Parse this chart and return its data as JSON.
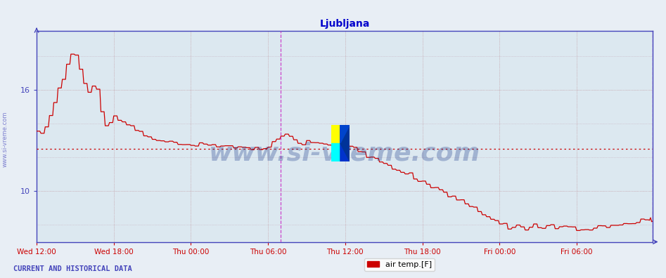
{
  "title": "Ljubljana",
  "title_color": "#0000cc",
  "background_color": "#e8eef5",
  "plot_bg_color": "#dce8f0",
  "grid_color": "#b0c4d8",
  "line_color": "#cc0000",
  "line_width": 0.9,
  "hline_color": "#cc0000",
  "hline_y": 12.5,
  "vline_color": "#cc44cc",
  "vline_positions": [
    228,
    575
  ],
  "yticks": [
    10,
    16
  ],
  "ylim": [
    7.0,
    19.5
  ],
  "xlim": [
    0,
    575
  ],
  "xtick_labels": [
    "Wed 12:00",
    "Wed 18:00",
    "Thu 00:00",
    "Thu 06:00",
    "Thu 12:00",
    "Thu 18:00",
    "Fri 00:00",
    "Fri 06:00"
  ],
  "xtick_positions": [
    0,
    72,
    144,
    216,
    288,
    360,
    432,
    504
  ],
  "watermark": "www.si-vreme.com",
  "watermark_color": "#1a3a8a",
  "legend_label": "air temp.[F]",
  "legend_color": "#cc0000",
  "footer_text": "CURRENT AND HISTORICAL DATA",
  "axis_color": "#4444bb",
  "tick_color": "#cc0000",
  "sidebar_text": "www.si-vreme.com"
}
